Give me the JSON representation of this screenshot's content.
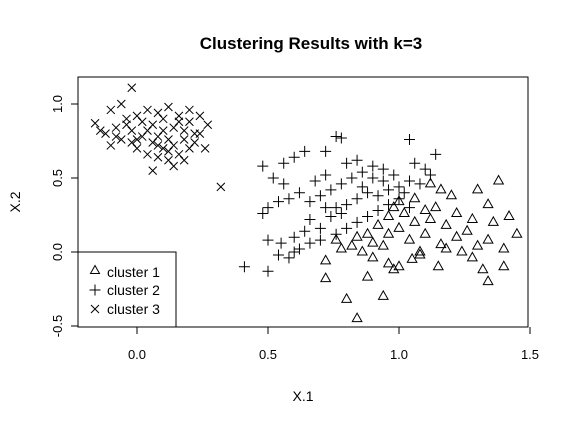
{
  "chart_data": {
    "type": "scatter",
    "title": "Clustering Results with k=3",
    "xlabel": "X.1",
    "ylabel": "X.2",
    "xlim": [
      -0.25,
      1.5
    ],
    "ylim": [
      -0.5,
      1.2
    ],
    "xticks": [
      0.0,
      0.5,
      1.0,
      1.5
    ],
    "xtick_labels": [
      "0.0",
      "0.5",
      "1.0",
      "1.5"
    ],
    "yticks": [
      -0.5,
      0.0,
      0.5,
      1.0
    ],
    "ytick_labels": [
      "-0.5",
      "0.0",
      "0.5",
      "1.0"
    ],
    "legend_position": "bottom-left",
    "series": [
      {
        "name": "cluster 1",
        "marker": "triangle",
        "points": [
          [
            0.84,
            -0.45
          ],
          [
            0.94,
            -0.3
          ],
          [
            0.8,
            -0.32
          ],
          [
            1.34,
            -0.2
          ],
          [
            0.72,
            -0.18
          ],
          [
            0.88,
            -0.17
          ],
          [
            0.98,
            -0.12
          ],
          [
            1.0,
            -0.1
          ],
          [
            1.32,
            -0.12
          ],
          [
            1.15,
            -0.1
          ],
          [
            1.05,
            -0.05
          ],
          [
            1.08,
            0.0
          ],
          [
            1.16,
            0.05
          ],
          [
            1.24,
            0.0
          ],
          [
            1.3,
            0.04
          ],
          [
            1.4,
            0.02
          ],
          [
            1.45,
            0.12
          ],
          [
            1.36,
            0.2
          ],
          [
            1.42,
            0.24
          ],
          [
            1.22,
            0.26
          ],
          [
            1.14,
            0.3
          ],
          [
            1.1,
            0.28
          ],
          [
            1.02,
            0.26
          ],
          [
            0.96,
            0.24
          ],
          [
            0.92,
            0.18
          ],
          [
            0.88,
            0.12
          ],
          [
            0.84,
            0.1
          ],
          [
            0.9,
            0.06
          ],
          [
            0.96,
            0.12
          ],
          [
            1.0,
            0.16
          ],
          [
            1.06,
            0.2
          ],
          [
            1.12,
            0.22
          ],
          [
            1.18,
            0.18
          ],
          [
            1.28,
            0.22
          ],
          [
            1.34,
            0.32
          ],
          [
            1.2,
            0.38
          ],
          [
            1.16,
            0.42
          ],
          [
            1.3,
            0.42
          ],
          [
            1.38,
            0.48
          ],
          [
            1.12,
            0.46
          ],
          [
            1.06,
            0.36
          ],
          [
            1.0,
            0.34
          ],
          [
            0.98,
            0.3
          ],
          [
            0.86,
            0.0
          ],
          [
            0.82,
            0.04
          ],
          [
            0.94,
            0.04
          ],
          [
            1.04,
            0.08
          ],
          [
            1.1,
            0.12
          ],
          [
            1.22,
            0.1
          ],
          [
            1.26,
            0.14
          ],
          [
            1.18,
            0.02
          ],
          [
            1.34,
            0.08
          ],
          [
            0.76,
            0.08
          ],
          [
            0.78,
            0.02
          ],
          [
            0.72,
            -0.06
          ],
          [
            0.9,
            -0.04
          ],
          [
            0.96,
            -0.08
          ],
          [
            1.08,
            -0.02
          ],
          [
            1.28,
            -0.04
          ],
          [
            1.4,
            -0.1
          ]
        ]
      },
      {
        "name": "cluster 2",
        "marker": "plus",
        "points": [
          [
            0.41,
            -0.1
          ],
          [
            0.5,
            -0.13
          ],
          [
            0.58,
            -0.04
          ],
          [
            0.62,
            0.02
          ],
          [
            0.55,
            0.06
          ],
          [
            0.5,
            0.08
          ],
          [
            0.6,
            0.1
          ],
          [
            0.64,
            0.14
          ],
          [
            0.7,
            0.16
          ],
          [
            0.66,
            0.22
          ],
          [
            0.74,
            0.24
          ],
          [
            0.78,
            0.26
          ],
          [
            0.72,
            0.3
          ],
          [
            0.8,
            0.32
          ],
          [
            0.84,
            0.36
          ],
          [
            0.88,
            0.4
          ],
          [
            0.92,
            0.38
          ],
          [
            0.96,
            0.42
          ],
          [
            1.0,
            0.44
          ],
          [
            1.04,
            0.48
          ],
          [
            0.98,
            0.52
          ],
          [
            0.94,
            0.56
          ],
          [
            0.9,
            0.58
          ],
          [
            0.86,
            0.54
          ],
          [
            0.82,
            0.5
          ],
          [
            0.78,
            0.46
          ],
          [
            0.74,
            0.42
          ],
          [
            0.7,
            0.38
          ],
          [
            0.66,
            0.34
          ],
          [
            0.62,
            0.4
          ],
          [
            0.58,
            0.36
          ],
          [
            0.56,
            0.46
          ],
          [
            0.52,
            0.5
          ],
          [
            0.48,
            0.58
          ],
          [
            0.56,
            0.6
          ],
          [
            0.6,
            0.64
          ],
          [
            0.64,
            0.68
          ],
          [
            0.72,
            0.68
          ],
          [
            0.76,
            0.78
          ],
          [
            0.78,
            0.77
          ],
          [
            0.8,
            0.6
          ],
          [
            0.84,
            0.62
          ],
          [
            1.04,
            0.76
          ],
          [
            1.06,
            0.6
          ],
          [
            1.1,
            0.56
          ],
          [
            1.14,
            0.66
          ],
          [
            1.12,
            0.52
          ],
          [
            1.08,
            0.46
          ],
          [
            1.02,
            0.4
          ],
          [
            0.96,
            0.32
          ],
          [
            0.92,
            0.28
          ],
          [
            0.88,
            0.24
          ],
          [
            0.84,
            0.2
          ],
          [
            0.8,
            0.16
          ],
          [
            0.76,
            0.12
          ],
          [
            0.7,
            0.08
          ],
          [
            0.66,
            0.06
          ],
          [
            0.6,
            0.0
          ],
          [
            0.54,
            -0.02
          ],
          [
            0.5,
            0.3
          ],
          [
            0.48,
            0.26
          ],
          [
            0.54,
            0.34
          ],
          [
            0.68,
            0.48
          ],
          [
            0.72,
            0.52
          ],
          [
            0.86,
            0.44
          ],
          [
            1.0,
            0.36
          ],
          [
            1.04,
            0.3
          ],
          [
            0.94,
            0.48
          ],
          [
            0.9,
            0.5
          ],
          [
            0.76,
            0.3
          ]
        ]
      },
      {
        "name": "cluster 3",
        "marker": "x",
        "points": [
          [
            -0.02,
            1.11
          ],
          [
            -0.06,
            1.0
          ],
          [
            -0.1,
            0.96
          ],
          [
            -0.16,
            0.87
          ],
          [
            -0.12,
            0.8
          ],
          [
            -0.08,
            0.84
          ],
          [
            -0.04,
            0.9
          ],
          [
            0.0,
            0.92
          ],
          [
            0.04,
            0.96
          ],
          [
            0.08,
            0.94
          ],
          [
            0.12,
            0.98
          ],
          [
            0.16,
            0.92
          ],
          [
            0.2,
            0.88
          ],
          [
            0.24,
            0.92
          ],
          [
            0.27,
            0.86
          ],
          [
            0.22,
            0.8
          ],
          [
            0.18,
            0.76
          ],
          [
            0.14,
            0.72
          ],
          [
            0.1,
            0.7
          ],
          [
            0.06,
            0.74
          ],
          [
            0.02,
            0.78
          ],
          [
            -0.02,
            0.82
          ],
          [
            -0.06,
            0.76
          ],
          [
            -0.1,
            0.72
          ],
          [
            0.0,
            0.7
          ],
          [
            0.04,
            0.66
          ],
          [
            0.08,
            0.64
          ],
          [
            0.12,
            0.62
          ],
          [
            0.16,
            0.66
          ],
          [
            0.2,
            0.7
          ],
          [
            0.06,
            0.55
          ],
          [
            0.14,
            0.58
          ],
          [
            0.1,
            0.82
          ],
          [
            0.06,
            0.86
          ],
          [
            0.02,
            0.88
          ],
          [
            -0.04,
            0.86
          ],
          [
            0.14,
            0.84
          ],
          [
            0.18,
            0.82
          ],
          [
            0.22,
            0.74
          ],
          [
            0.26,
            0.7
          ],
          [
            0.12,
            0.76
          ],
          [
            0.08,
            0.78
          ],
          [
            0.04,
            0.82
          ],
          [
            0.0,
            0.76
          ],
          [
            -0.08,
            0.78
          ],
          [
            0.16,
            0.88
          ],
          [
            0.1,
            0.9
          ],
          [
            0.2,
            0.96
          ],
          [
            0.24,
            0.8
          ],
          [
            0.32,
            0.44
          ],
          [
            -0.14,
            0.82
          ],
          [
            -0.02,
            0.74
          ],
          [
            0.12,
            0.68
          ],
          [
            0.18,
            0.62
          ],
          [
            0.08,
            0.72
          ]
        ]
      }
    ]
  }
}
